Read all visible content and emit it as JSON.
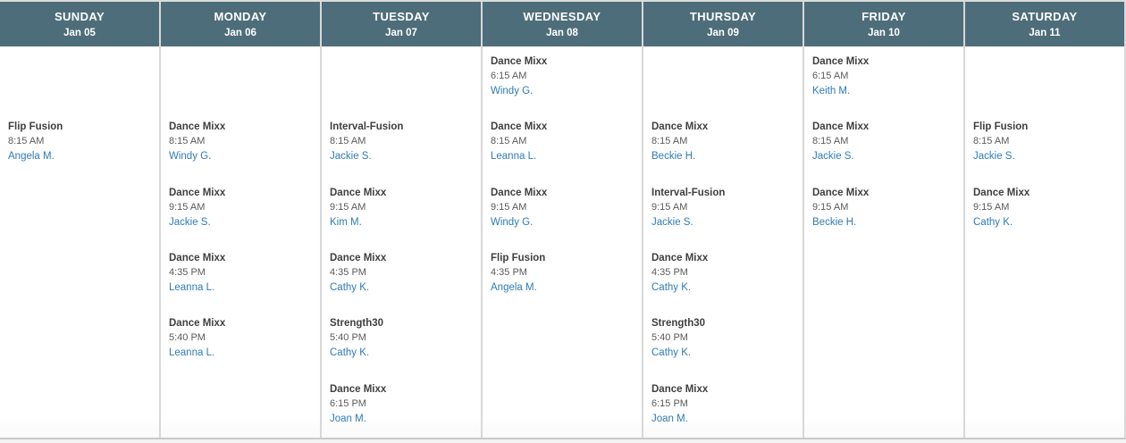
{
  "schedule": {
    "colors": {
      "header_bg": "#4e6d7a",
      "header_text": "#ffffff",
      "instructor_link": "#2e7cb5",
      "class_name_text": "#3f3f3f",
      "time_text": "#5a5a5a",
      "divider": "#d8d8d8"
    },
    "time_slots": [
      "6:15 AM",
      "8:15 AM",
      "9:15 AM",
      "4:35 PM",
      "5:40 PM",
      "6:15 PM"
    ],
    "days": [
      {
        "name": "SUNDAY",
        "date": "Jan 05",
        "classes": [
          {
            "name": "Flip Fusion",
            "time": "8:15 AM",
            "instructor": "Angela M."
          }
        ]
      },
      {
        "name": "MONDAY",
        "date": "Jan 06",
        "classes": [
          {
            "name": "Dance Mixx",
            "time": "8:15 AM",
            "instructor": "Windy G."
          },
          {
            "name": "Dance Mixx",
            "time": "9:15 AM",
            "instructor": "Jackie S."
          },
          {
            "name": "Dance Mixx",
            "time": "4:35 PM",
            "instructor": "Leanna L."
          },
          {
            "name": "Dance Mixx",
            "time": "5:40 PM",
            "instructor": "Leanna L."
          }
        ]
      },
      {
        "name": "TUESDAY",
        "date": "Jan 07",
        "classes": [
          {
            "name": "Interval-Fusion",
            "time": "8:15 AM",
            "instructor": "Jackie S."
          },
          {
            "name": "Dance Mixx",
            "time": "9:15 AM",
            "instructor": "Kim M."
          },
          {
            "name": "Dance Mixx",
            "time": "4:35 PM",
            "instructor": "Cathy K."
          },
          {
            "name": "Strength30",
            "time": "5:40 PM",
            "instructor": "Cathy K."
          },
          {
            "name": "Dance Mixx",
            "time": "6:15 PM",
            "instructor": "Joan M."
          }
        ]
      },
      {
        "name": "WEDNESDAY",
        "date": "Jan 08",
        "classes": [
          {
            "name": "Dance Mixx",
            "time": "6:15 AM",
            "instructor": "Windy G."
          },
          {
            "name": "Dance Mixx",
            "time": "8:15 AM",
            "instructor": "Leanna L."
          },
          {
            "name": "Dance Mixx",
            "time": "9:15 AM",
            "instructor": "Windy G."
          },
          {
            "name": "Flip Fusion",
            "time": "4:35 PM",
            "instructor": "Angela M."
          }
        ]
      },
      {
        "name": "THURSDAY",
        "date": "Jan 09",
        "classes": [
          {
            "name": "Dance Mixx",
            "time": "8:15 AM",
            "instructor": "Beckie H."
          },
          {
            "name": "Interval-Fusion",
            "time": "9:15 AM",
            "instructor": "Jackie S."
          },
          {
            "name": "Dance Mixx",
            "time": "4:35 PM",
            "instructor": "Cathy K."
          },
          {
            "name": "Strength30",
            "time": "5:40 PM",
            "instructor": "Cathy K."
          },
          {
            "name": "Dance Mixx",
            "time": "6:15 PM",
            "instructor": "Joan M."
          }
        ]
      },
      {
        "name": "FRIDAY",
        "date": "Jan 10",
        "classes": [
          {
            "name": "Dance Mixx",
            "time": "6:15 AM",
            "instructor": "Keith M."
          },
          {
            "name": "Dance Mixx",
            "time": "8:15 AM",
            "instructor": "Jackie S."
          },
          {
            "name": "Dance Mixx",
            "time": "9:15 AM",
            "instructor": "Beckie H."
          }
        ]
      },
      {
        "name": "SATURDAY",
        "date": "Jan 11",
        "classes": [
          {
            "name": "Flip Fusion",
            "time": "8:15 AM",
            "instructor": "Jackie S."
          },
          {
            "name": "Dance Mixx",
            "time": "9:15 AM",
            "instructor": "Cathy K."
          }
        ]
      }
    ]
  }
}
